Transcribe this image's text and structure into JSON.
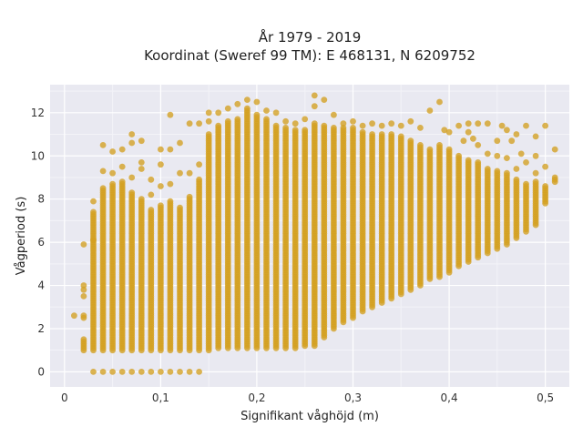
{
  "chart_data": {
    "type": "scatter",
    "title_line1": "År 1979 - 2019",
    "title_line2": "Koordinat (Sweref 99 TM): E 468131, N 6209752",
    "xlabel": "Signifikant våghöjd (m)",
    "ylabel": "Vågperiod (s)",
    "xlim": [
      -0.015,
      0.525
    ],
    "ylim": [
      -0.7,
      13.3
    ],
    "xticks": [
      0,
      0.1,
      0.2,
      0.3,
      0.4,
      0.5
    ],
    "xtick_labels": [
      "0",
      "0,1",
      "0,2",
      "0,3",
      "0,4",
      "0,5"
    ],
    "yticks": [
      0,
      2,
      4,
      6,
      8,
      10,
      12
    ],
    "ytick_labels": [
      "0",
      "2",
      "4",
      "6",
      "8",
      "10",
      "12"
    ],
    "grid": true,
    "colors": {
      "marker": "#d4a021",
      "background": "#e9e9f1",
      "grid": "#ffffff"
    },
    "bin_width": 0.01,
    "columns": [
      {
        "x": 0.01,
        "ymin": 2.6,
        "ymax": 2.6
      },
      {
        "x": 0.02,
        "ymin": 1.0,
        "ymax": 1.5,
        "extra": [
          2.5,
          2.6,
          3.5,
          3.8,
          4.0,
          5.9
        ]
      },
      {
        "x": 0.03,
        "ymin": 1.0,
        "ymax": 7.4,
        "extra": [
          0.0,
          7.9,
          6.1
        ]
      },
      {
        "x": 0.04,
        "ymin": 1.0,
        "ymax": 8.5,
        "extra": [
          0.0,
          9.3,
          10.5
        ]
      },
      {
        "x": 0.05,
        "ymin": 1.0,
        "ymax": 8.7,
        "extra": [
          0.0,
          9.2,
          10.2
        ]
      },
      {
        "x": 0.06,
        "ymin": 1.0,
        "ymax": 8.8,
        "extra": [
          0.0,
          9.5,
          10.3
        ]
      },
      {
        "x": 0.07,
        "ymin": 1.0,
        "ymax": 8.3,
        "extra": [
          0.0,
          9.0,
          10.6,
          11.0
        ]
      },
      {
        "x": 0.08,
        "ymin": 1.0,
        "ymax": 8.0,
        "extra": [
          0.0,
          9.4,
          9.7,
          10.7
        ]
      },
      {
        "x": 0.09,
        "ymin": 1.0,
        "ymax": 7.5,
        "extra": [
          0.0,
          8.2,
          8.9
        ]
      },
      {
        "x": 0.1,
        "ymin": 1.0,
        "ymax": 7.7,
        "extra": [
          0.0,
          8.6,
          9.6,
          10.3
        ]
      },
      {
        "x": 0.11,
        "ymin": 1.0,
        "ymax": 7.9,
        "extra": [
          0.0,
          8.7,
          10.3,
          11.9
        ]
      },
      {
        "x": 0.12,
        "ymin": 1.0,
        "ymax": 7.6,
        "extra": [
          0.0,
          9.2,
          10.6
        ]
      },
      {
        "x": 0.13,
        "ymin": 1.0,
        "ymax": 8.1,
        "extra": [
          0.0,
          9.2,
          11.5
        ]
      },
      {
        "x": 0.14,
        "ymin": 1.0,
        "ymax": 8.9,
        "extra": [
          0.0,
          9.6,
          11.5
        ]
      },
      {
        "x": 0.15,
        "ymin": 1.0,
        "ymax": 11.0,
        "extra": [
          11.6,
          12.0
        ]
      },
      {
        "x": 0.16,
        "ymin": 1.1,
        "ymax": 11.4,
        "extra": [
          12.0
        ]
      },
      {
        "x": 0.17,
        "ymin": 1.1,
        "ymax": 11.6,
        "extra": [
          12.2
        ]
      },
      {
        "x": 0.18,
        "ymin": 1.1,
        "ymax": 11.7,
        "extra": [
          12.4
        ]
      },
      {
        "x": 0.19,
        "ymin": 1.1,
        "ymax": 12.2,
        "extra": [
          12.6
        ]
      },
      {
        "x": 0.2,
        "ymin": 1.1,
        "ymax": 11.9,
        "extra": [
          12.5
        ]
      },
      {
        "x": 0.21,
        "ymin": 1.1,
        "ymax": 11.7,
        "extra": [
          12.1
        ]
      },
      {
        "x": 0.22,
        "ymin": 1.1,
        "ymax": 11.4,
        "extra": [
          12.0
        ]
      },
      {
        "x": 0.23,
        "ymin": 1.1,
        "ymax": 11.3,
        "extra": [
          11.6
        ]
      },
      {
        "x": 0.24,
        "ymin": 1.1,
        "ymax": 11.2,
        "extra": [
          11.5
        ]
      },
      {
        "x": 0.25,
        "ymin": 1.2,
        "ymax": 11.2,
        "extra": [
          11.7
        ]
      },
      {
        "x": 0.26,
        "ymin": 1.2,
        "ymax": 11.5,
        "extra": [
          12.3,
          12.8
        ]
      },
      {
        "x": 0.27,
        "ymin": 1.7,
        "ymax": 11.4,
        "extra": [
          12.6,
          1.6
        ]
      },
      {
        "x": 0.28,
        "ymin": 2.0,
        "ymax": 11.3,
        "extra": [
          11.9
        ]
      },
      {
        "x": 0.29,
        "ymin": 2.3,
        "ymax": 11.3,
        "extra": [
          11.5
        ]
      },
      {
        "x": 0.3,
        "ymin": 2.5,
        "ymax": 11.3,
        "extra": [
          11.6
        ]
      },
      {
        "x": 0.31,
        "ymin": 2.8,
        "ymax": 11.1,
        "extra": [
          11.4
        ]
      },
      {
        "x": 0.32,
        "ymin": 3.0,
        "ymax": 11.0,
        "extra": [
          11.5
        ]
      },
      {
        "x": 0.33,
        "ymin": 3.2,
        "ymax": 11.0,
        "extra": [
          11.4
        ]
      },
      {
        "x": 0.34,
        "ymin": 3.4,
        "ymax": 11.0,
        "extra": [
          11.5
        ]
      },
      {
        "x": 0.35,
        "ymin": 3.6,
        "ymax": 10.9,
        "extra": [
          11.4
        ]
      },
      {
        "x": 0.36,
        "ymin": 3.8,
        "ymax": 10.7,
        "extra": [
          11.6
        ]
      },
      {
        "x": 0.37,
        "ymin": 4.0,
        "ymax": 10.5,
        "extra": [
          11.3
        ]
      },
      {
        "x": 0.38,
        "ymin": 4.3,
        "ymax": 10.3,
        "extra": [
          12.1
        ]
      },
      {
        "x": 0.39,
        "ymin": 4.4,
        "ymax": 10.5,
        "extra": [
          12.5
        ]
      },
      {
        "x": 0.4,
        "ymin": 4.6,
        "ymax": 10.3,
        "extra": [
          11.1
        ]
      },
      {
        "x": 0.41,
        "ymin": 4.9,
        "ymax": 10.0,
        "extra": [
          11.4
        ]
      },
      {
        "x": 0.42,
        "ymin": 5.1,
        "ymax": 9.8,
        "extra": [
          11.1,
          11.5
        ]
      },
      {
        "x": 0.43,
        "ymin": 5.3,
        "ymax": 9.7,
        "extra": [
          10.5
        ]
      },
      {
        "x": 0.44,
        "ymin": 5.5,
        "ymax": 9.4,
        "extra": [
          10.1
        ]
      },
      {
        "x": 0.45,
        "ymin": 5.7,
        "ymax": 9.3,
        "extra": [
          10.0
        ]
      },
      {
        "x": 0.46,
        "ymin": 5.9,
        "ymax": 9.2,
        "extra": [
          9.9
        ]
      },
      {
        "x": 0.47,
        "ymin": 6.2,
        "ymax": 8.9,
        "extra": [
          9.4
        ]
      },
      {
        "x": 0.48,
        "ymin": 6.5,
        "ymax": 8.7,
        "extra": [
          9.7
        ]
      },
      {
        "x": 0.49,
        "ymin": 6.8,
        "ymax": 8.8,
        "extra": [
          9.2
        ]
      },
      {
        "x": 0.5,
        "ymin": 7.8,
        "ymax": 8.6,
        "extra": [
          9.5
        ]
      },
      {
        "x": 0.51,
        "ymin": 8.8,
        "ymax": 9.0,
        "extra": [
          10.3
        ]
      }
    ],
    "extra_points": [
      [
        0.44,
        11.5
      ],
      [
        0.45,
        10.7
      ],
      [
        0.46,
        11.2
      ],
      [
        0.47,
        11.0
      ],
      [
        0.48,
        11.4
      ],
      [
        0.49,
        10.9
      ],
      [
        0.5,
        11.4
      ],
      [
        0.475,
        10.1
      ],
      [
        0.49,
        10.0
      ],
      [
        0.395,
        11.2
      ],
      [
        0.415,
        10.7
      ],
      [
        0.43,
        11.5
      ],
      [
        0.455,
        11.4
      ],
      [
        0.465,
        10.7
      ],
      [
        0.425,
        10.8
      ]
    ]
  }
}
